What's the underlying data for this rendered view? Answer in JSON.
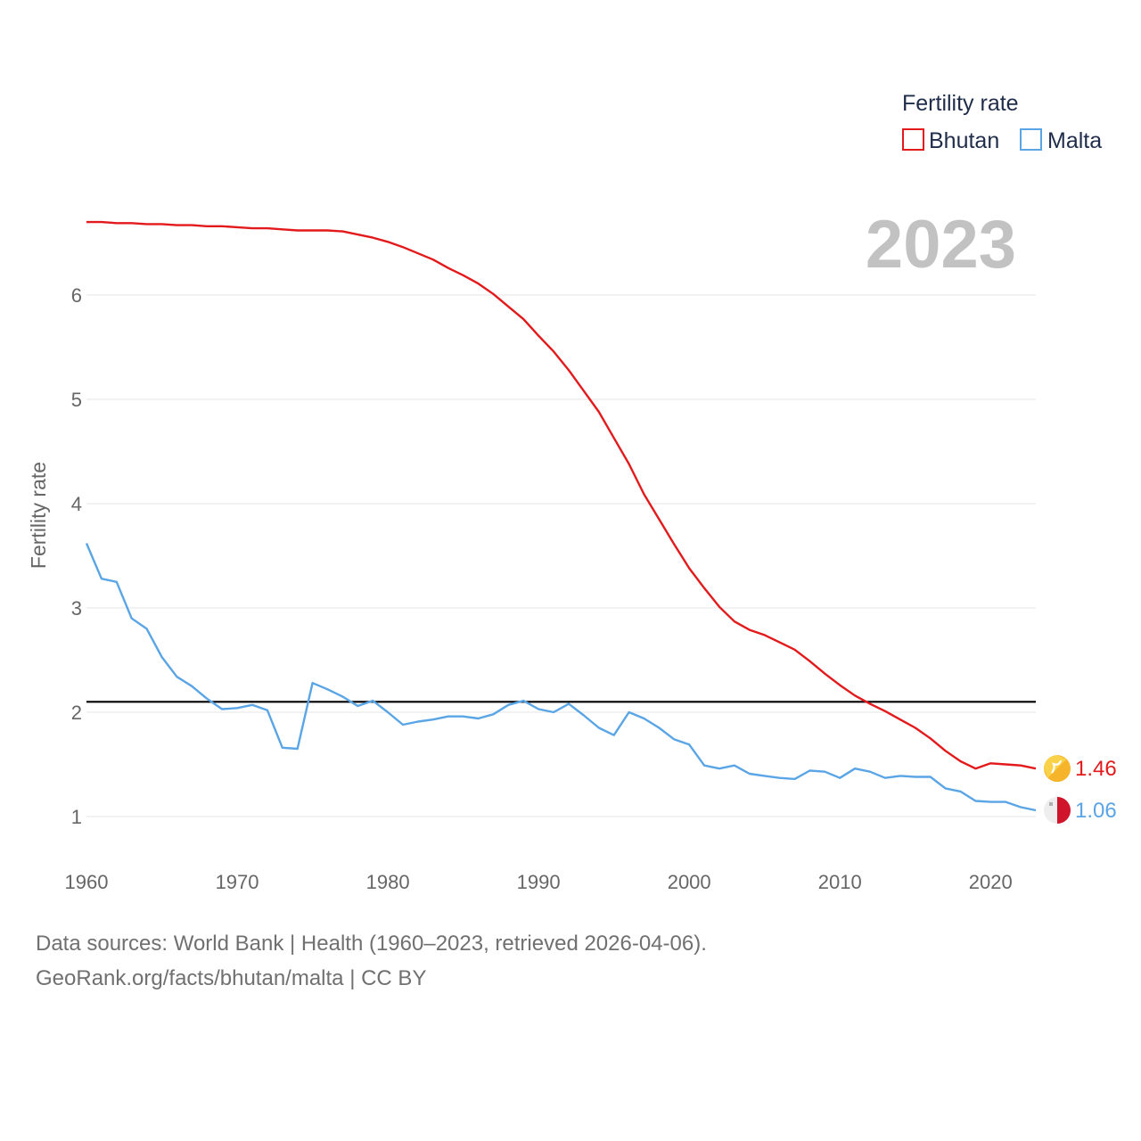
{
  "chart_data": {
    "type": "line",
    "ylabel": "Fertility rate",
    "xlabel": "",
    "xlim": [
      1960,
      2023
    ],
    "ylim": [
      0.5,
      6.8
    ],
    "yticks": [
      1,
      2,
      3,
      4,
      5,
      6
    ],
    "yticklabels": [
      "1",
      "2",
      "3",
      "4",
      "5",
      "6"
    ],
    "xticks": [
      1960,
      1970,
      1980,
      1990,
      2000,
      2010,
      2020
    ],
    "xticklabels": [
      "1960",
      "1970",
      "1980",
      "1990",
      "2000",
      "2010",
      "2020"
    ],
    "grid": true,
    "year_label": "2023",
    "legend": {
      "title": "Fertility rate",
      "position": "top-right"
    },
    "reference_line": {
      "y": 2.1,
      "color": "#000000"
    },
    "x": [
      1960,
      1961,
      1962,
      1963,
      1964,
      1965,
      1966,
      1967,
      1968,
      1969,
      1970,
      1971,
      1972,
      1973,
      1974,
      1975,
      1976,
      1977,
      1978,
      1979,
      1980,
      1981,
      1982,
      1983,
      1984,
      1985,
      1986,
      1987,
      1988,
      1989,
      1990,
      1991,
      1992,
      1993,
      1994,
      1995,
      1996,
      1997,
      1998,
      1999,
      2000,
      2001,
      2002,
      2003,
      2004,
      2005,
      2006,
      2007,
      2008,
      2009,
      2010,
      2011,
      2012,
      2013,
      2014,
      2015,
      2016,
      2017,
      2018,
      2019,
      2020,
      2021,
      2022,
      2023
    ],
    "series": [
      {
        "name": "Bhutan",
        "color": "#e31a1c",
        "end_label": "1.46",
        "values": [
          6.7,
          6.7,
          6.69,
          6.69,
          6.68,
          6.68,
          6.67,
          6.67,
          6.66,
          6.66,
          6.65,
          6.64,
          6.64,
          6.63,
          6.62,
          6.62,
          6.62,
          6.61,
          6.58,
          6.55,
          6.51,
          6.46,
          6.4,
          6.34,
          6.26,
          6.19,
          6.11,
          6.01,
          5.89,
          5.77,
          5.61,
          5.46,
          5.28,
          5.08,
          4.88,
          4.63,
          4.38,
          4.09,
          3.85,
          3.61,
          3.38,
          3.19,
          3.01,
          2.87,
          2.79,
          2.74,
          2.67,
          2.6,
          2.49,
          2.37,
          2.26,
          2.16,
          2.08,
          2.01,
          1.93,
          1.85,
          1.75,
          1.63,
          1.53,
          1.46,
          1.51,
          1.5,
          1.49,
          1.46
        ]
      },
      {
        "name": "Malta",
        "color": "#5aa5e6",
        "end_label": "1.06",
        "values": [
          3.62,
          3.28,
          3.25,
          2.9,
          2.8,
          2.53,
          2.34,
          2.25,
          2.13,
          2.03,
          2.04,
          2.07,
          2.02,
          1.66,
          1.65,
          2.28,
          2.22,
          2.15,
          2.06,
          2.11,
          2.0,
          1.88,
          1.91,
          1.93,
          1.96,
          1.96,
          1.94,
          1.98,
          2.07,
          2.11,
          2.03,
          2.0,
          2.08,
          1.97,
          1.85,
          1.78,
          2.0,
          1.94,
          1.85,
          1.74,
          1.69,
          1.49,
          1.46,
          1.49,
          1.41,
          1.39,
          1.37,
          1.36,
          1.44,
          1.43,
          1.37,
          1.46,
          1.43,
          1.37,
          1.39,
          1.38,
          1.38,
          1.27,
          1.24,
          1.15,
          1.14,
          1.14,
          1.09,
          1.06
        ]
      }
    ]
  },
  "footer": {
    "line1": "Data sources: World Bank | Health (1960–2023, retrieved 2026-04-06).",
    "line2": "GeoRank.org/facts/bhutan/malta | CC BY"
  }
}
